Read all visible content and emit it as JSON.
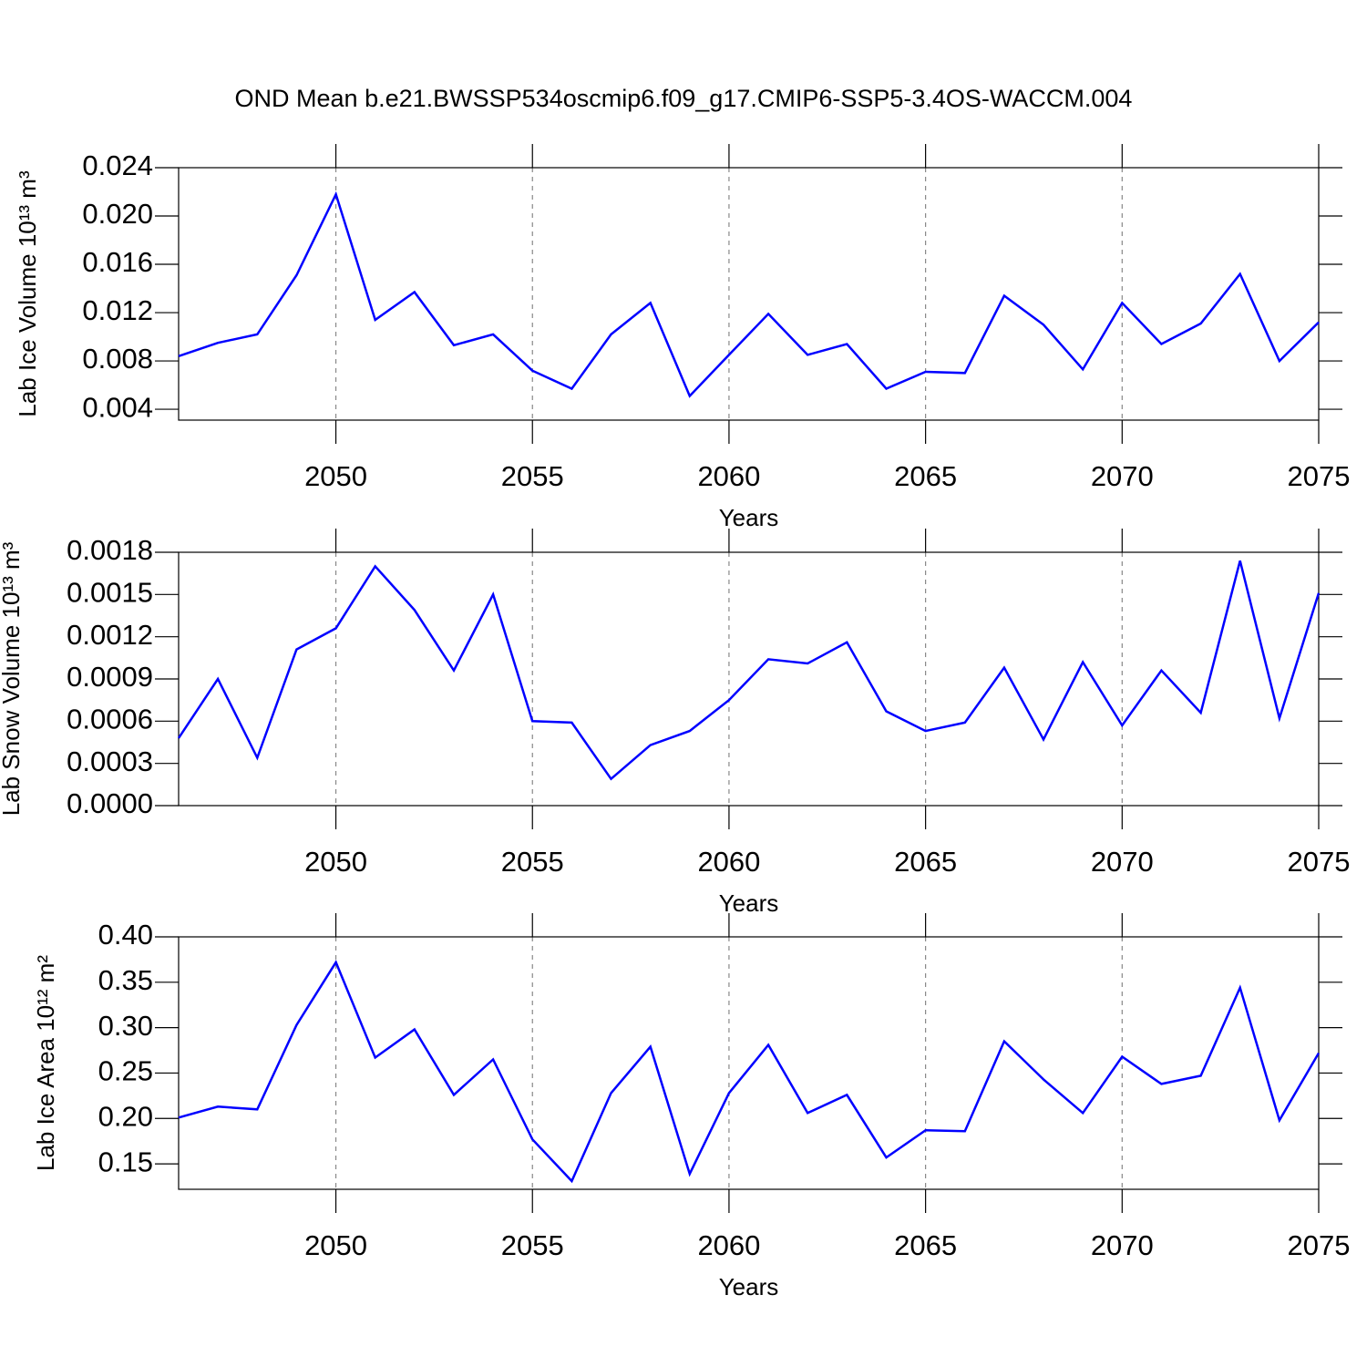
{
  "chart_data": [
    {
      "type": "line",
      "title": "OND Mean b.e21.BWSSP534oscmip6.f09_g17.CMIP6-SSP5-3.4OS-WACCM.004",
      "xlabel": "Years",
      "ylabel": "Lab Ice Volume 10¹³ m³",
      "x": [
        2046,
        2047,
        2048,
        2049,
        2050,
        2051,
        2052,
        2053,
        2054,
        2055,
        2056,
        2057,
        2058,
        2059,
        2060,
        2061,
        2062,
        2063,
        2064,
        2065,
        2066,
        2067,
        2068,
        2069,
        2070,
        2071,
        2072,
        2073,
        2074,
        2075
      ],
      "values": [
        0.0084,
        0.0095,
        0.0102,
        0.0151,
        0.0218,
        0.0114,
        0.0137,
        0.0093,
        0.0102,
        0.0072,
        0.0057,
        0.0102,
        0.0128,
        0.0051,
        0.0085,
        0.0119,
        0.0085,
        0.0094,
        0.0057,
        0.0071,
        0.007,
        0.0134,
        0.011,
        0.0073,
        0.0128,
        0.0094,
        0.0111,
        0.0152,
        0.008,
        0.0112
      ],
      "color": "#0000ff",
      "xlim": [
        2046,
        2075
      ],
      "xticks": [
        2050,
        2055,
        2060,
        2065,
        2070,
        2075
      ],
      "ylim": [
        0.0031,
        0.024
      ],
      "yticks": [
        0.004,
        0.008,
        0.012,
        0.016,
        {
          "value": 0.02,
          "label": "0.020"
        },
        0.024
      ],
      "grid": "x"
    },
    {
      "type": "line",
      "xlabel": "Years",
      "ylabel": "Lab Snow Volume 10¹³ m³",
      "x": [
        2046,
        2047,
        2048,
        2049,
        2050,
        2051,
        2052,
        2053,
        2054,
        2055,
        2056,
        2057,
        2058,
        2059,
        2060,
        2061,
        2062,
        2063,
        2064,
        2065,
        2066,
        2067,
        2068,
        2069,
        2070,
        2071,
        2072,
        2073,
        2074,
        2075
      ],
      "values": [
        0.00048,
        0.0009,
        0.00034,
        0.00111,
        0.00126,
        0.0017,
        0.00139,
        0.00096,
        0.0015,
        0.0006,
        0.00059,
        0.00019,
        0.00043,
        0.00053,
        0.00075,
        0.00104,
        0.00101,
        0.00116,
        0.00067,
        0.00053,
        0.00059,
        0.00098,
        0.00047,
        0.00102,
        0.00057,
        0.00096,
        0.00066,
        0.00174,
        0.00062,
        0.00151
      ],
      "color": "#0000ff",
      "xlim": [
        2046,
        2075
      ],
      "xticks": [
        2050,
        2055,
        2060,
        2065,
        2070,
        2075
      ],
      "ylim": [
        0,
        0.0018
      ],
      "yticks": [
        {
          "value": 0,
          "label": "0.0000"
        },
        0.0003,
        0.0006,
        0.0009,
        0.0012,
        0.0015,
        0.0018
      ],
      "grid": "x"
    },
    {
      "type": "line",
      "xlabel": "Years",
      "ylabel": "Lab Ice Area 10¹² m²",
      "x": [
        2046,
        2047,
        2048,
        2049,
        2050,
        2051,
        2052,
        2053,
        2054,
        2055,
        2056,
        2057,
        2058,
        2059,
        2060,
        2061,
        2062,
        2063,
        2064,
        2065,
        2066,
        2067,
        2068,
        2069,
        2070,
        2071,
        2072,
        2073,
        2074,
        2075
      ],
      "values": [
        0.201,
        0.213,
        0.21,
        0.303,
        0.372,
        0.267,
        0.298,
        0.226,
        0.265,
        0.177,
        0.131,
        0.228,
        0.279,
        0.139,
        0.228,
        0.281,
        0.206,
        0.226,
        0.157,
        0.187,
        0.186,
        0.285,
        0.243,
        0.206,
        0.268,
        0.238,
        0.247,
        0.344,
        0.198,
        0.272
      ],
      "color": "#0000ff",
      "xlim": [
        2046,
        2075
      ],
      "xticks": [
        2050,
        2055,
        2060,
        2065,
        2070,
        2075
      ],
      "ylim": [
        0.122,
        0.4
      ],
      "yticks": [
        0.15,
        {
          "value": 0.2,
          "label": "0.20"
        },
        0.25,
        {
          "value": 0.3,
          "label": "0.30"
        },
        0.35,
        {
          "value": 0.4,
          "label": "0.40"
        }
      ],
      "grid": "x"
    }
  ]
}
